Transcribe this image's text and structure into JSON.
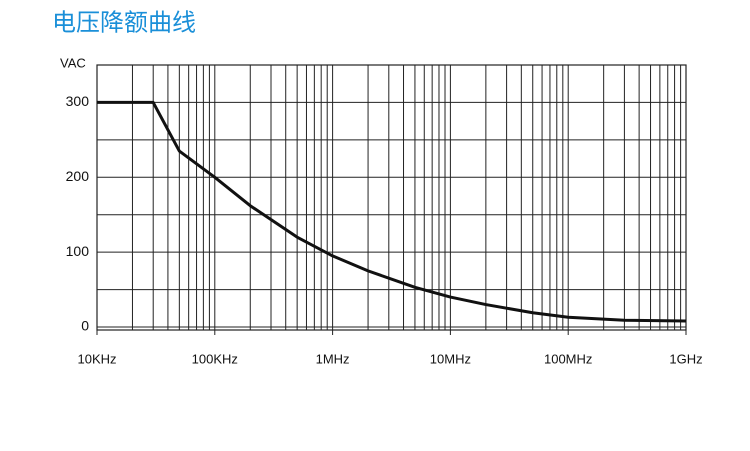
{
  "chart_data": {
    "type": "line",
    "title": "电压降额曲线",
    "y_label": "VAC",
    "x_scale": "log",
    "x_minor_grid": true,
    "grid": true,
    "x": [
      10000,
      30000,
      50000,
      100000,
      200000,
      500000,
      1000000,
      2000000,
      5000000,
      10000000,
      20000000,
      50000000,
      100000000,
      300000000,
      1000000000
    ],
    "series": [
      {
        "name": "VAC",
        "color": "#111111",
        "values": [
          300,
          300,
          235,
          200,
          162,
          120,
          95,
          75,
          53,
          40,
          30,
          19,
          13,
          9,
          8
        ]
      }
    ],
    "xlim": [
      10000,
      1000000000
    ],
    "xticks": [
      {
        "value": 10000,
        "label": "10KHz"
      },
      {
        "value": 100000,
        "label": "100KHz"
      },
      {
        "value": 1000000,
        "label": "1MHz"
      },
      {
        "value": 10000000,
        "label": "10MHz"
      },
      {
        "value": 100000000,
        "label": "100MHz"
      },
      {
        "value": 1000000000,
        "label": "1GHz"
      }
    ],
    "ylim": [
      0,
      350
    ],
    "yticks": [
      0,
      100,
      200,
      300
    ],
    "y_minor_ticks": [
      50,
      150,
      250
    ]
  }
}
